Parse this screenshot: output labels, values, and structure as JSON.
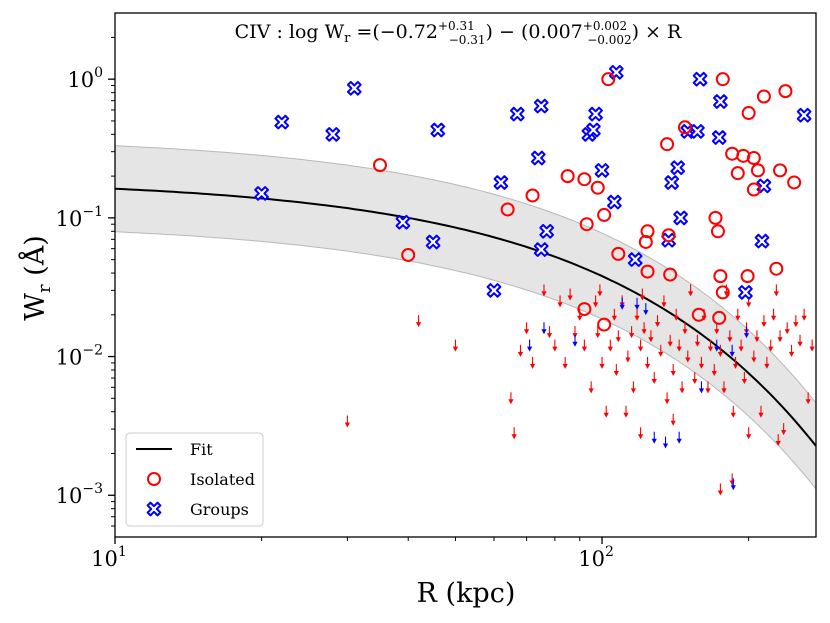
{
  "chart_data": {
    "type": "scatter",
    "title": "CIV : log W_r = (−0.72 (+0.31/−0.31)) − (0.007 (+0.002/−0.002)) × R",
    "title_parts": {
      "ion": "CIV",
      "lhs": "log W",
      "lhs_sub": "r",
      "intercept": "−0.72",
      "intercept_up": "+0.31",
      "intercept_dn": "−0.31",
      "slope": "0.007",
      "slope_up": "+0.002",
      "slope_dn": "−0.002",
      "var": "R"
    },
    "xlabel": "R (kpc)",
    "ylabel_main": "W",
    "ylabel_sub": "r",
    "ylabel_unit": "(Å)",
    "xscale": "log",
    "yscale": "log",
    "xlim": [
      10,
      275
    ],
    "ylim": [
      0.0005,
      3.0
    ],
    "x_ticks": [
      {
        "value": 10,
        "base": "10",
        "exp": "1"
      },
      {
        "value": 100,
        "base": "10",
        "exp": "2"
      }
    ],
    "y_ticks": [
      {
        "value": 0.001,
        "base": "10",
        "exp": "−3"
      },
      {
        "value": 0.01,
        "base": "10",
        "exp": "−2"
      },
      {
        "value": 0.1,
        "base": "10",
        "exp": "−1"
      },
      {
        "value": 1,
        "base": "10",
        "exp": "0"
      }
    ],
    "fit": {
      "intercept": -0.72,
      "slope": -0.007,
      "band_lower_intercept": -1.03,
      "band_upper_intercept": -0.41
    },
    "legend": {
      "position": "lower-left",
      "entries": [
        {
          "label": "Fit",
          "kind": "line",
          "color": "#000000"
        },
        {
          "label": "Isolated",
          "kind": "circle",
          "color": "#ff0000"
        },
        {
          "label": "Groups",
          "kind": "x-marker",
          "color": "#0000ff"
        }
      ]
    },
    "series": [
      {
        "name": "Isolated",
        "color": "#ff0000",
        "points": [
          [
            35,
            0.24
          ],
          [
            40,
            0.054
          ],
          [
            64,
            0.115
          ],
          [
            72,
            0.145
          ],
          [
            85,
            0.2
          ],
          [
            92,
            0.19
          ],
          [
            93,
            0.09
          ],
          [
            92,
            0.022
          ],
          [
            98,
            0.165
          ],
          [
            101,
            0.017
          ],
          [
            101,
            0.105
          ],
          [
            103,
            1.0
          ],
          [
            108,
            0.055
          ],
          [
            123,
            0.067
          ],
          [
            124,
            0.08
          ],
          [
            124,
            0.041
          ],
          [
            136,
            0.34
          ],
          [
            137,
            0.075
          ],
          [
            138,
            0.039
          ],
          [
            148,
            0.45
          ],
          [
            158,
            0.02
          ],
          [
            171,
            0.1
          ],
          [
            173,
            0.08
          ],
          [
            175,
            0.038
          ],
          [
            174,
            0.019
          ],
          [
            177,
            0.029
          ],
          [
            177,
            1.0
          ],
          [
            185,
            0.29
          ],
          [
            190,
            0.21
          ],
          [
            195,
            0.28
          ],
          [
            200,
            0.57
          ],
          [
            199,
            0.038
          ],
          [
            205,
            0.27
          ],
          [
            205,
            0.16
          ],
          [
            209,
            0.22
          ],
          [
            215,
            0.75
          ],
          [
            228,
            0.043
          ],
          [
            232,
            0.22
          ],
          [
            238,
            0.82
          ],
          [
            248,
            0.18
          ]
        ]
      },
      {
        "name": "Groups",
        "color": "#0000ff",
        "points": [
          [
            20,
            0.15
          ],
          [
            22,
            0.49
          ],
          [
            28,
            0.4
          ],
          [
            31,
            0.86
          ],
          [
            39,
            0.093
          ],
          [
            45,
            0.067
          ],
          [
            46,
            0.43
          ],
          [
            60,
            0.03
          ],
          [
            62,
            0.18
          ],
          [
            67,
            0.56
          ],
          [
            74,
            0.27
          ],
          [
            75,
            0.64
          ],
          [
            75,
            0.059
          ],
          [
            77,
            0.08
          ],
          [
            94,
            0.4
          ],
          [
            96,
            0.43
          ],
          [
            97,
            0.56
          ],
          [
            100,
            0.22
          ],
          [
            106,
            0.13
          ],
          [
            107,
            1.12
          ],
          [
            117,
            0.05
          ],
          [
            137,
            0.069
          ],
          [
            139,
            0.18
          ],
          [
            143,
            0.23
          ],
          [
            145,
            0.1
          ],
          [
            150,
            0.42
          ],
          [
            157,
            0.42
          ],
          [
            159,
            1.0
          ],
          [
            174,
            0.38
          ],
          [
            175,
            0.69
          ],
          [
            197,
            0.029
          ],
          [
            213,
            0.068
          ],
          [
            215,
            0.17
          ],
          [
            260,
            0.55
          ]
        ]
      },
      {
        "name": "Isolated upper limits",
        "color": "#ff0000",
        "points": [
          [
            30,
            0.0034
          ],
          [
            42,
            0.018
          ],
          [
            50,
            0.012
          ],
          [
            65,
            0.005
          ],
          [
            66,
            0.0028
          ],
          [
            68,
            0.011
          ],
          [
            70,
            0.016
          ],
          [
            72,
            0.009
          ],
          [
            76,
            0.03
          ],
          [
            78,
            0.015
          ],
          [
            80,
            0.012
          ],
          [
            82,
            0.025
          ],
          [
            84,
            0.009
          ],
          [
            86,
            0.028
          ],
          [
            88,
            0.015
          ],
          [
            90,
            0.02
          ],
          [
            92,
            0.012
          ],
          [
            95,
            0.006
          ],
          [
            97,
            0.025
          ],
          [
            98,
            0.015
          ],
          [
            99,
            0.03
          ],
          [
            100,
            0.009
          ],
          [
            102,
            0.004
          ],
          [
            104,
            0.012
          ],
          [
            106,
            0.02
          ],
          [
            107,
            0.008
          ],
          [
            108,
            0.014
          ],
          [
            110,
            0.025
          ],
          [
            112,
            0.004
          ],
          [
            113,
            0.01
          ],
          [
            115,
            0.015
          ],
          [
            116,
            0.006
          ],
          [
            118,
            0.02
          ],
          [
            120,
            0.012
          ],
          [
            121,
            0.028
          ],
          [
            122,
            0.016
          ],
          [
            124,
            0.009
          ],
          [
            126,
            0.014
          ],
          [
            128,
            0.007
          ],
          [
            130,
            0.018
          ],
          [
            132,
            0.011
          ],
          [
            134,
            0.025
          ],
          [
            136,
            0.005
          ],
          [
            138,
            0.013
          ],
          [
            140,
            0.008
          ],
          [
            142,
            0.02
          ],
          [
            144,
            0.012
          ],
          [
            146,
            0.006
          ],
          [
            148,
            0.016
          ],
          [
            150,
            0.01
          ],
          [
            152,
            0.03
          ],
          [
            155,
            0.007
          ],
          [
            157,
            0.013
          ],
          [
            160,
            0.009
          ],
          [
            162,
            0.02
          ],
          [
            165,
            0.006
          ],
          [
            167,
            0.012
          ],
          [
            170,
            0.008
          ],
          [
            172,
            0.016
          ],
          [
            175,
            0.011
          ],
          [
            178,
            0.006
          ],
          [
            180,
            0.03
          ],
          [
            183,
            0.014
          ],
          [
            186,
            0.004
          ],
          [
            188,
            0.009
          ],
          [
            190,
            0.02
          ],
          [
            193,
            0.012
          ],
          [
            196,
            0.007
          ],
          [
            198,
            0.016
          ],
          [
            200,
            0.025
          ],
          [
            205,
            0.01
          ],
          [
            208,
            0.014
          ],
          [
            212,
            0.004
          ],
          [
            215,
            0.018
          ],
          [
            218,
            0.009
          ],
          [
            222,
            0.012
          ],
          [
            225,
            0.02
          ],
          [
            228,
            0.03
          ],
          [
            232,
            0.014
          ],
          [
            236,
            0.003
          ],
          [
            240,
            0.016
          ],
          [
            245,
            0.011
          ],
          [
            250,
            0.018
          ],
          [
            255,
            0.013
          ],
          [
            260,
            0.02
          ],
          [
            265,
            0.005
          ],
          [
            270,
            0.012
          ],
          [
            185,
            0.0013
          ],
          [
            175,
            0.0011
          ],
          [
            200,
            0.0028
          ],
          [
            230,
            0.0025
          ],
          [
            140,
            0.0035
          ],
          [
            120,
            0.0028
          ]
        ]
      },
      {
        "name": "Groups upper limits",
        "color": "#0000ff",
        "points": [
          [
            71,
            0.012
          ],
          [
            76,
            0.016
          ],
          [
            88,
            0.013
          ],
          [
            110,
            0.024
          ],
          [
            118,
            0.024
          ],
          [
            123,
            0.022
          ],
          [
            128,
            0.0026
          ],
          [
            135,
            0.0024
          ],
          [
            144,
            0.0026
          ],
          [
            160,
            0.006
          ],
          [
            172,
            0.012
          ],
          [
            185,
            0.011
          ],
          [
            186,
            0.0012
          ],
          [
            198,
            0.015
          ]
        ]
      }
    ]
  }
}
